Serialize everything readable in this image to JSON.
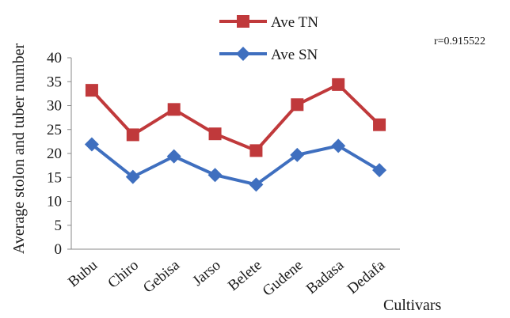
{
  "chart_data": {
    "type": "line",
    "categories": [
      "Bubu",
      "Chiro",
      "Gebisa",
      "Jarso",
      "Belete",
      "Gudene",
      "Badasa",
      "Dedafa"
    ],
    "series": [
      {
        "name": "Ave TN",
        "color": "#c0393b",
        "marker": "square",
        "values": [
          33.2,
          23.9,
          29.2,
          24.1,
          20.6,
          30.2,
          34.4,
          26.0
        ]
      },
      {
        "name": "Ave SN",
        "color": "#3f6fbf",
        "marker": "diamond",
        "values": [
          21.9,
          15.1,
          19.4,
          15.5,
          13.5,
          19.7,
          21.6,
          16.5
        ]
      }
    ],
    "xlabel": "Cultivars",
    "ylabel": "Average stolon and tuber number",
    "ylim": [
      0,
      40
    ],
    "yticks": [
      0,
      5,
      10,
      15,
      20,
      25,
      30,
      35,
      40
    ],
    "grid": false,
    "legend_position": "top-center",
    "annotation": "r=0.915522"
  }
}
